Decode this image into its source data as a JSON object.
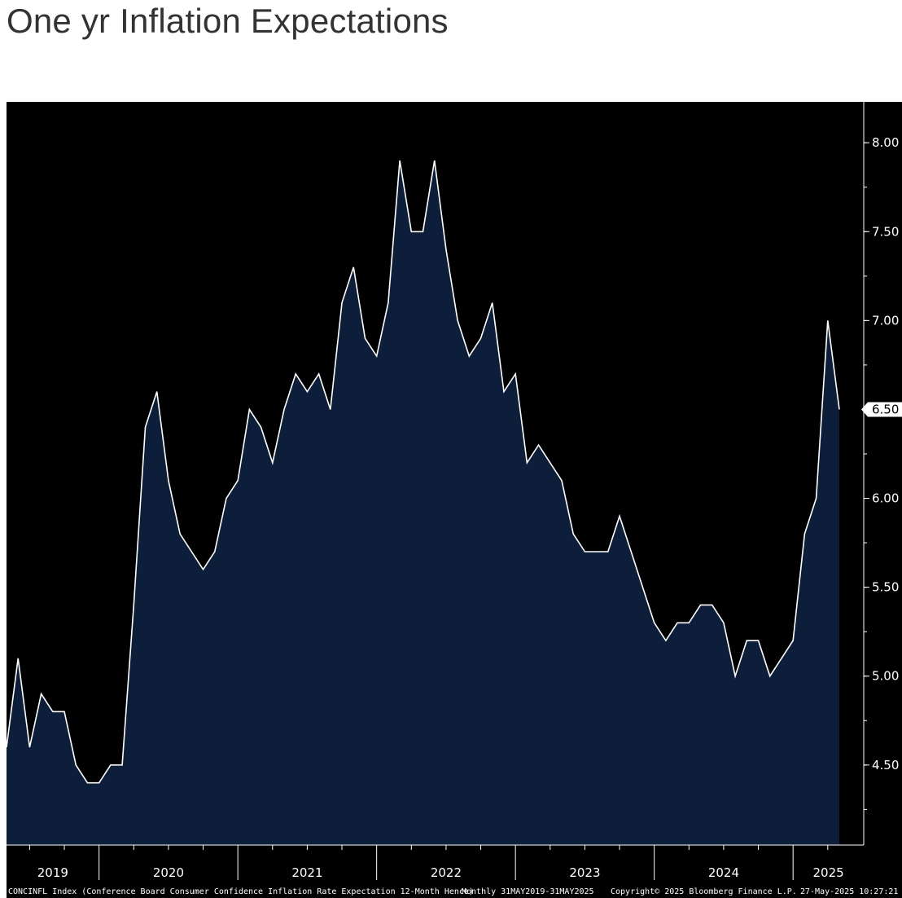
{
  "title": "One yr Inflation Expectations",
  "footer": {
    "ticker": "CONCINFL Index (Conference Board Consumer Confidence Inflation Rate Expectation 12-Month Hence)",
    "range": "Monthly 31MAY2019-31MAY2025",
    "copyright": "Copyright© 2025 Bloomberg Finance L.P.",
    "timestamp": "27-May-2025 10:27:21"
  },
  "colors": {
    "background": "#000000",
    "area_fill": "#0c1e3a",
    "line": "#ffffff",
    "last_value_box": "#ffffff"
  },
  "chart_data": {
    "type": "area",
    "title": "One yr Inflation Expectations",
    "xlabel": "",
    "ylabel": "",
    "ylim": [
      4.05,
      8.23
    ],
    "yticks": [
      "8.00",
      "7.50",
      "7.00",
      "6.50",
      "6.00",
      "5.50",
      "5.00",
      "4.50"
    ],
    "x_year_labels": [
      "2019",
      "2020",
      "2021",
      "2022",
      "2023",
      "2024",
      "2025"
    ],
    "last_value_label": "6.50",
    "grid": false,
    "series": [
      {
        "x": [
          "2019-05",
          "2019-06",
          "2019-07",
          "2019-08",
          "2019-09",
          "2019-10",
          "2019-11",
          "2019-12",
          "2020-01",
          "2020-02",
          "2020-03",
          "2020-04",
          "2020-05",
          "2020-06",
          "2020-07",
          "2020-08",
          "2020-09",
          "2020-10",
          "2020-11",
          "2020-12",
          "2021-01",
          "2021-02",
          "2021-03",
          "2021-04",
          "2021-05",
          "2021-06",
          "2021-07",
          "2021-08",
          "2021-09",
          "2021-10",
          "2021-11",
          "2021-12",
          "2022-01",
          "2022-02",
          "2022-03",
          "2022-04",
          "2022-05",
          "2022-06",
          "2022-07",
          "2022-08",
          "2022-09",
          "2022-10",
          "2022-11",
          "2022-12",
          "2023-01",
          "2023-02",
          "2023-03",
          "2023-04",
          "2023-05",
          "2023-06",
          "2023-07",
          "2023-08",
          "2023-09",
          "2023-10",
          "2023-11",
          "2023-12",
          "2024-01",
          "2024-02",
          "2024-03",
          "2024-04",
          "2024-05",
          "2024-06",
          "2024-07",
          "2024-08",
          "2024-09",
          "2024-10",
          "2024-11",
          "2024-12",
          "2025-01",
          "2025-02",
          "2025-03",
          "2025-04",
          "2025-05"
        ],
        "values": [
          4.6,
          5.1,
          4.6,
          4.9,
          4.8,
          4.8,
          4.5,
          4.4,
          4.4,
          4.5,
          4.5,
          5.4,
          6.4,
          6.6,
          6.1,
          5.8,
          5.7,
          5.6,
          5.7,
          6.0,
          6.1,
          6.5,
          6.4,
          6.2,
          6.5,
          6.7,
          6.6,
          6.7,
          6.5,
          7.1,
          7.3,
          6.9,
          6.8,
          7.1,
          7.9,
          7.5,
          7.5,
          7.9,
          7.4,
          7.0,
          6.8,
          6.9,
          7.1,
          6.6,
          6.7,
          6.2,
          6.3,
          6.2,
          6.1,
          5.8,
          5.7,
          5.7,
          5.7,
          5.9,
          5.7,
          5.5,
          5.3,
          5.2,
          5.3,
          5.3,
          5.4,
          5.4,
          5.3,
          5.0,
          5.2,
          5.2,
          5.0,
          5.1,
          5.2,
          5.8,
          6.0,
          7.0,
          6.5
        ]
      }
    ]
  }
}
